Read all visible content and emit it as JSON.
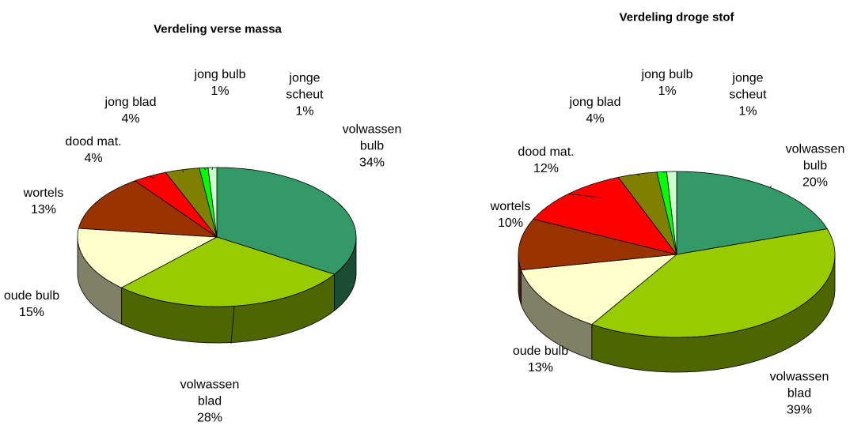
{
  "chart_data": [
    {
      "type": "pie",
      "title": "Verdeling verse massa",
      "categories": [
        "volwassen bulb",
        "volwassen blad",
        "oude bulb",
        "wortels",
        "dood mat.",
        "jong blad",
        "jong bulb",
        "jonge scheut"
      ],
      "values": [
        34,
        28,
        15,
        13,
        4,
        4,
        1,
        1
      ],
      "value_labels": [
        "34%",
        "28%",
        "15%",
        "13%",
        "4%",
        "4%",
        "1%",
        "1%"
      ],
      "colors": [
        "#339966",
        "#99cc00",
        "#ffffcc",
        "#993300",
        "#ff0000",
        "#808000",
        "#00ff00",
        "#ccffcc"
      ]
    },
    {
      "type": "pie",
      "title": "Verdeling droge stof",
      "categories": [
        "volwassen bulb",
        "volwassen blad",
        "oude bulb",
        "wortels",
        "dood mat.",
        "jong blad",
        "jong bulb",
        "jonge scheut"
      ],
      "values": [
        20,
        39,
        13,
        10,
        12,
        4,
        1,
        1
      ],
      "value_labels": [
        "20%",
        "39%",
        "13%",
        "10%",
        "12%",
        "4%",
        "1%",
        "1%"
      ],
      "colors": [
        "#339966",
        "#99cc00",
        "#ffffcc",
        "#993300",
        "#ff0000",
        "#808000",
        "#00ff00",
        "#ccffcc"
      ]
    }
  ]
}
